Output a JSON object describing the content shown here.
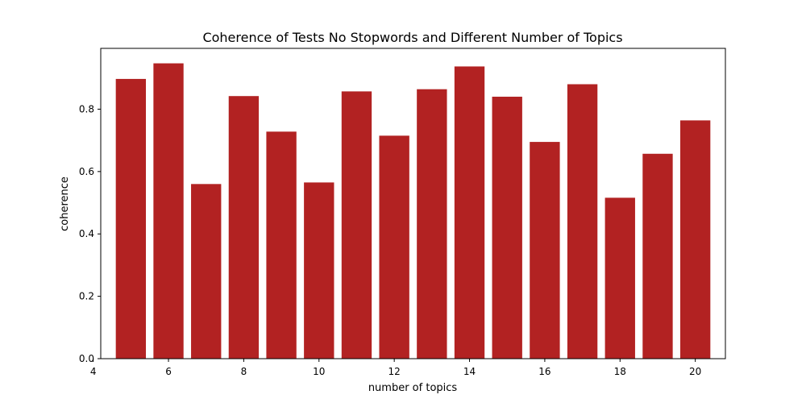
{
  "chart_data": {
    "type": "bar",
    "title": "Coherence of Tests No Stopwords and Different Number of Topics",
    "xlabel": "number of topics",
    "ylabel": "coherence",
    "x": [
      5,
      6,
      7,
      8,
      9,
      10,
      11,
      12,
      13,
      14,
      15,
      16,
      17,
      18,
      19,
      20
    ],
    "values": [
      0.897,
      0.947,
      0.56,
      0.842,
      0.728,
      0.565,
      0.857,
      0.715,
      0.864,
      0.937,
      0.84,
      0.695,
      0.88,
      0.516,
      0.657,
      0.764
    ],
    "xlim": [
      4.2,
      20.8
    ],
    "ylim": [
      0,
      0.995
    ],
    "xticks": [
      4,
      6,
      8,
      10,
      12,
      14,
      16,
      18,
      20
    ],
    "yticks": [
      0.0,
      0.2,
      0.4,
      0.6,
      0.8
    ],
    "ytick_labels": [
      "0.0",
      "0.2",
      "0.4",
      "0.6",
      "0.8"
    ],
    "bar_color": "#b22222",
    "grid": false,
    "legend": "none"
  }
}
